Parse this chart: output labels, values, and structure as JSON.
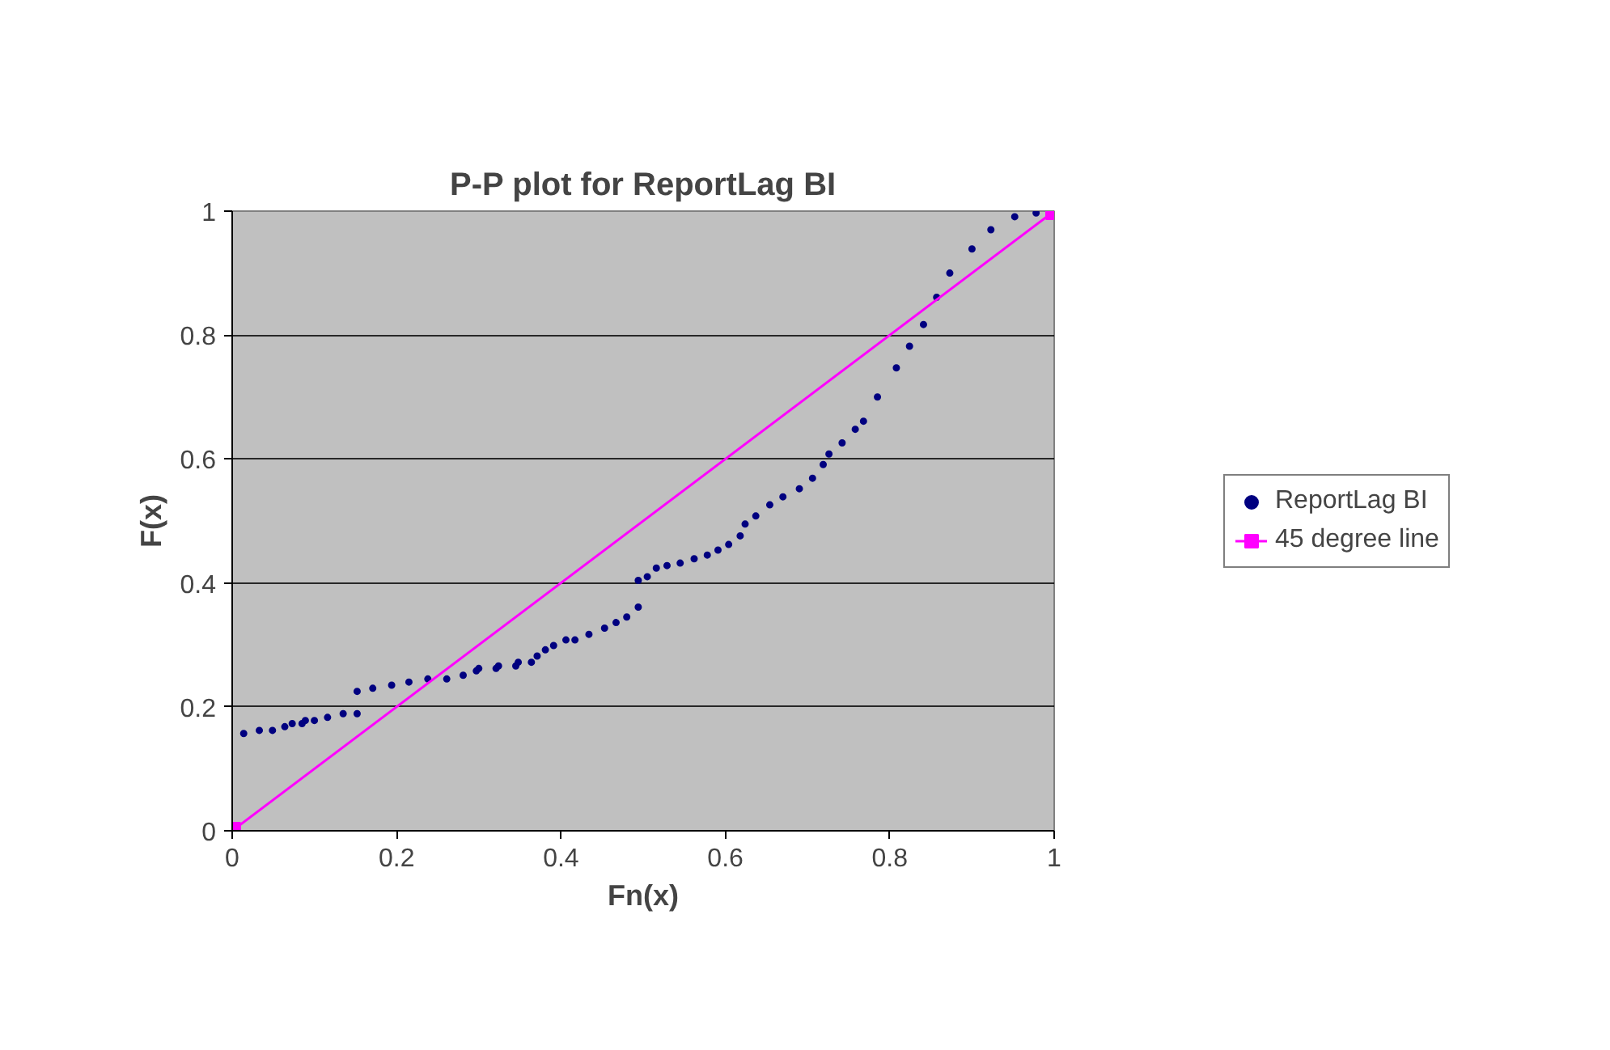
{
  "chart_data": {
    "type": "scatter",
    "title": "P-P plot for ReportLag BI",
    "xlabel": "Fn(x)",
    "ylabel": "F(x)",
    "xlim": [
      0,
      1
    ],
    "ylim": [
      0,
      1
    ],
    "xticks": [
      0,
      0.2,
      0.4,
      0.6,
      0.8,
      1
    ],
    "yticks": [
      0,
      0.2,
      0.4,
      0.6,
      0.8,
      1
    ],
    "grid": "y",
    "legend": "right",
    "series": [
      {
        "name": "ReportLag BI",
        "marker": "circle",
        "color": "#000080",
        "x": [
          0.014,
          0.033,
          0.049,
          0.064,
          0.073,
          0.085,
          0.089,
          0.1,
          0.116,
          0.135,
          0.152,
          0.152,
          0.171,
          0.194,
          0.215,
          0.238,
          0.261,
          0.281,
          0.297,
          0.3,
          0.321,
          0.324,
          0.345,
          0.348,
          0.364,
          0.371,
          0.381,
          0.391,
          0.406,
          0.417,
          0.434,
          0.453,
          0.467,
          0.48,
          0.494,
          0.494,
          0.505,
          0.516,
          0.529,
          0.545,
          0.562,
          0.578,
          0.591,
          0.604,
          0.618,
          0.624,
          0.637,
          0.654,
          0.67,
          0.69,
          0.706,
          0.719,
          0.726,
          0.742,
          0.758,
          0.768,
          0.785,
          0.808,
          0.824,
          0.841,
          0.857,
          0.873,
          0.9,
          0.923,
          0.952,
          0.978
        ],
        "values": [
          0.157,
          0.162,
          0.162,
          0.168,
          0.173,
          0.173,
          0.178,
          0.178,
          0.183,
          0.189,
          0.189,
          0.225,
          0.23,
          0.235,
          0.24,
          0.245,
          0.245,
          0.251,
          0.258,
          0.262,
          0.262,
          0.266,
          0.266,
          0.272,
          0.272,
          0.282,
          0.292,
          0.299,
          0.308,
          0.308,
          0.317,
          0.327,
          0.336,
          0.345,
          0.361,
          0.404,
          0.41,
          0.424,
          0.428,
          0.432,
          0.439,
          0.445,
          0.453,
          0.462,
          0.476,
          0.495,
          0.508,
          0.526,
          0.539,
          0.552,
          0.569,
          0.591,
          0.608,
          0.626,
          0.648,
          0.661,
          0.7,
          0.747,
          0.782,
          0.817,
          0.861,
          0.9,
          0.939,
          0.97,
          0.991,
          0.997
        ]
      },
      {
        "name": "45 degree line",
        "type": "line",
        "marker": "square",
        "color": "#ff00ff",
        "x": [
          0,
          1
        ],
        "values": [
          0,
          1
        ]
      }
    ]
  }
}
